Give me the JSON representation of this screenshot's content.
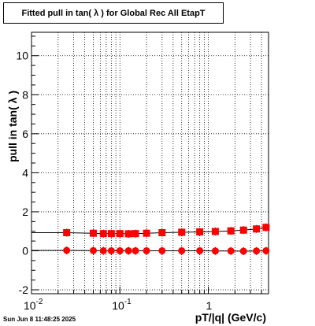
{
  "title": "Fitted pull in tan( λ ) for Global Rec All EtapT",
  "datestamp": "Sun Jun  8 11:48:25 2025",
  "chart_data": {
    "type": "scatter",
    "title": "Fitted pull in tan( λ ) for Global Rec All EtapT",
    "xlabel": "pT/|q| (GeV/c)",
    "ylabel": "pull in tan( λ )",
    "xscale": "log",
    "xlim": [
      0.01,
      4.8
    ],
    "ylim": [
      -2.2,
      11.2
    ],
    "xticks": [
      "10^{-2}",
      "10^{-1}",
      "1"
    ],
    "yticks": [
      -2,
      0,
      2,
      4,
      6,
      8,
      10
    ],
    "grid": true,
    "series": [
      {
        "marker": "square",
        "color": "#ff0000",
        "x": [
          0.025,
          0.05,
          0.065,
          0.08,
          0.1,
          0.125,
          0.15,
          0.2,
          0.3,
          0.5,
          0.8,
          1.2,
          1.8,
          2.5,
          3.5,
          4.5
        ],
        "y": [
          0.93,
          0.9,
          0.88,
          0.88,
          0.88,
          0.87,
          0.88,
          0.9,
          0.93,
          0.95,
          0.97,
          0.99,
          1.02,
          1.06,
          1.12,
          1.2
        ]
      },
      {
        "marker": "circle",
        "color": "#ff0000",
        "x": [
          0.025,
          0.05,
          0.065,
          0.08,
          0.1,
          0.125,
          0.15,
          0.2,
          0.3,
          0.5,
          0.8,
          1.2,
          1.8,
          2.5,
          3.5,
          4.5
        ],
        "y": [
          0.02,
          0.01,
          0.0,
          0.0,
          0.0,
          0.0,
          0.0,
          0.0,
          0.0,
          0.0,
          0.0,
          -0.01,
          -0.01,
          -0.02,
          -0.01,
          0.0
        ]
      }
    ]
  }
}
